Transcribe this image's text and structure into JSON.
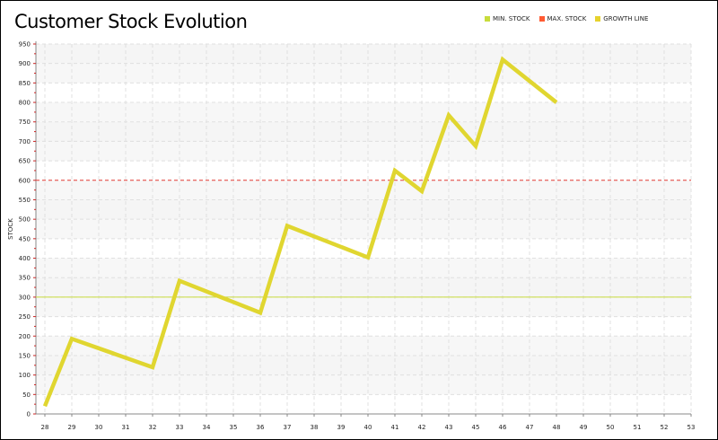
{
  "chart_data": {
    "type": "line",
    "title": "Customer Stock Evolution",
    "xlabel": "",
    "ylabel": "STOCK",
    "xlim": [
      28,
      53
    ],
    "ylim": [
      0,
      950
    ],
    "x_ticks": [
      28,
      29,
      30,
      31,
      32,
      33,
      34,
      35,
      36,
      37,
      38,
      39,
      40,
      41,
      42,
      43,
      45,
      46,
      47,
      48,
      49,
      50,
      51,
      52,
      53
    ],
    "y_ticks": [
      0,
      50,
      100,
      150,
      200,
      250,
      300,
      350,
      400,
      450,
      500,
      550,
      600,
      650,
      700,
      750,
      800,
      850,
      900,
      950
    ],
    "grid": true,
    "legend_position": "top-right",
    "legend": [
      {
        "label": "MIN. STOCK",
        "color": "#c8dc3c"
      },
      {
        "label": "MAX. STOCK",
        "color": "#ff5a32"
      },
      {
        "label": "GROWTH LINE",
        "color": "#e6d22d"
      }
    ],
    "series": [
      {
        "name": "GROWTH LINE",
        "color": "#e0d630",
        "points": [
          {
            "x": 28,
            "y": 20
          },
          {
            "x": 29,
            "y": 193
          },
          {
            "x": 32,
            "y": 120
          },
          {
            "x": 33,
            "y": 342
          },
          {
            "x": 36,
            "y": 260
          },
          {
            "x": 37,
            "y": 483
          },
          {
            "x": 40,
            "y": 402
          },
          {
            "x": 41,
            "y": 625
          },
          {
            "x": 42,
            "y": 572
          },
          {
            "x": 43,
            "y": 767
          },
          {
            "x": 45,
            "y": 688
          },
          {
            "x": 46,
            "y": 910
          },
          {
            "x": 48,
            "y": 800
          }
        ]
      }
    ],
    "reference_lines": [
      {
        "name": "MIN. STOCK",
        "value": 300,
        "color": "#c8dc3c",
        "style": "solid"
      },
      {
        "name": "MAX. STOCK",
        "value": 600,
        "color": "#e8403a",
        "style": "dashed"
      }
    ]
  }
}
